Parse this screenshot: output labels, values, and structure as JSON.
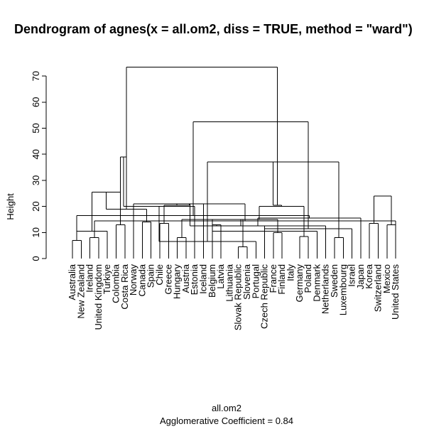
{
  "chart_data": {
    "type": "dendrogram",
    "title": "Dendrogram of  agnes(x = all.om2, diss = TRUE, method = \"ward\")",
    "ylabel": "Height",
    "xlabel": "all.om2",
    "subtitle": "Agglomerative Coefficient =  0.84",
    "ylim": [
      0,
      75
    ],
    "yticks": [
      0,
      10,
      20,
      30,
      40,
      50,
      60,
      70
    ],
    "labels": [
      "Australia",
      "New Zealand",
      "Ireland",
      "United Kingdom",
      "Turkiye",
      "Colombia",
      "Costa Rica",
      "Norway",
      "Canada",
      "Spain",
      "Chile",
      "Greece",
      "Hungary",
      "Austria",
      "Estonia",
      "Iceland",
      "Belgium",
      "Latvia",
      "Lithuania",
      "Slovak Republic",
      "Slovenia",
      "Portugal",
      "Czech Republic",
      "France",
      "Finland",
      "Italy",
      "Germany",
      "Poland",
      "Denmark",
      "Netherlands",
      "Sweden",
      "Luxembourg",
      "Israel",
      "Japan",
      "Korea",
      "Switzerland",
      "Mexico",
      "United States"
    ],
    "merges": [
      [
        0,
        1,
        7
      ],
      [
        2,
        3,
        8
      ],
      [
        38,
        4,
        10.5
      ],
      [
        37,
        39,
        14.5
      ],
      [
        5,
        6,
        13
      ],
      [
        7,
        41,
        21
      ],
      [
        40,
        42,
        25.5
      ],
      [
        8,
        9,
        14
      ],
      [
        10,
        11,
        13.5
      ],
      [
        44,
        45,
        19
      ],
      [
        43,
        46,
        20.5
      ],
      [
        42,
        47,
        39
      ],
      [
        12,
        13,
        8
      ],
      [
        14,
        49,
        20
      ],
      [
        16,
        17,
        13
      ],
      [
        19,
        20,
        4.5
      ],
      [
        51,
        21,
        6.5
      ],
      [
        52,
        22,
        12.5
      ],
      [
        50,
        53,
        15
      ],
      [
        15,
        48,
        21
      ],
      [
        23,
        24,
        10
      ],
      [
        26,
        27,
        8.5
      ],
      [
        56,
        28,
        10.5
      ],
      [
        57,
        29,
        12.5
      ],
      [
        55,
        58,
        15
      ],
      [
        30,
        31,
        8
      ],
      [
        32,
        60,
        11.5
      ],
      [
        61,
        33,
        15.5
      ],
      [
        59,
        62,
        20
      ],
      [
        54,
        63,
        37
      ],
      [
        34,
        35,
        13.5
      ],
      [
        36,
        37,
        13
      ],
      [
        65,
        38,
        16.5
      ],
      [
        66,
        67,
        20.5
      ],
      [
        68,
        69,
        24
      ],
      [
        64,
        70,
        52.5
      ],
      [
        47,
        71,
        73.5
      ]
    ]
  }
}
